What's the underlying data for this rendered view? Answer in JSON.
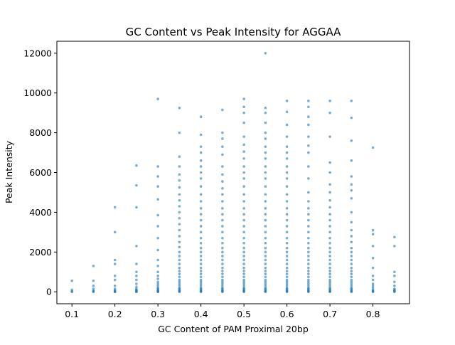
{
  "chart_data": {
    "type": "scatter",
    "title": "GC Content vs Peak Intensity for AGGAA",
    "xlabel": "GC Content of PAM Proximal 20bp",
    "ylabel": "Peak Intensity",
    "xlim": [
      0.065,
      0.885
    ],
    "ylim": [
      -600,
      12600
    ],
    "xticks": [
      0.1,
      0.2,
      0.3,
      0.4,
      0.5,
      0.6,
      0.7,
      0.8
    ],
    "xtick_labels": [
      "0.1",
      "0.2",
      "0.3",
      "0.4",
      "0.5",
      "0.6",
      "0.7",
      "0.8"
    ],
    "yticks": [
      0,
      2000,
      4000,
      6000,
      8000,
      10000,
      12000
    ],
    "ytick_labels": [
      "0",
      "2000",
      "4000",
      "6000",
      "8000",
      "10000",
      "12000"
    ],
    "grid": false,
    "point_color": "#1f77b4",
    "point_alpha": 0.6,
    "x_groups": [
      {
        "x": 0.1,
        "y": [
          0,
          20,
          100,
          550
        ]
      },
      {
        "x": 0.15,
        "y": [
          0,
          20,
          60,
          150,
          300,
          550,
          1300
        ]
      },
      {
        "x": 0.2,
        "y": [
          0,
          10,
          30,
          80,
          150,
          300,
          600,
          800,
          1400,
          1600,
          3000,
          4250
        ]
      },
      {
        "x": 0.25,
        "y": [
          0,
          10,
          30,
          60,
          100,
          150,
          250,
          400,
          600,
          800,
          1000,
          1400,
          2300,
          4250,
          5350,
          6350
        ]
      },
      {
        "x": 0.3,
        "y": [
          0,
          10,
          30,
          60,
          100,
          150,
          200,
          300,
          400,
          500,
          650,
          800,
          1000,
          1300,
          1600,
          2100,
          2700,
          3300,
          3850,
          4650,
          5300,
          5800,
          6300,
          9700
        ]
      },
      {
        "x": 0.35,
        "y": [
          0,
          20,
          50,
          100,
          150,
          200,
          300,
          400,
          500,
          600,
          750,
          900,
          1050,
          1200,
          1400,
          1600,
          1800,
          2000,
          2250,
          2500,
          2800,
          3100,
          3400,
          3700,
          4000,
          4300,
          4600,
          4900,
          5250,
          5600,
          5900,
          6300,
          6800,
          8000,
          9250
        ]
      },
      {
        "x": 0.4,
        "y": [
          0,
          20,
          50,
          100,
          150,
          200,
          300,
          400,
          500,
          600,
          750,
          900,
          1050,
          1200,
          1400,
          1600,
          1800,
          2000,
          2200,
          2450,
          2700,
          3000,
          3300,
          3600,
          3900,
          4200,
          4550,
          4900,
          5300,
          5700,
          6000,
          6300,
          6600,
          7000,
          7300,
          7900,
          8800
        ]
      },
      {
        "x": 0.45,
        "y": [
          0,
          20,
          50,
          100,
          150,
          200,
          300,
          400,
          500,
          600,
          750,
          900,
          1050,
          1200,
          1400,
          1600,
          1800,
          2000,
          2200,
          2450,
          2700,
          3000,
          3300,
          3600,
          3900,
          4200,
          4550,
          4900,
          5200,
          5550,
          5900,
          6300,
          6900,
          7300,
          7700,
          8000,
          9150
        ]
      },
      {
        "x": 0.5,
        "y": [
          0,
          20,
          50,
          100,
          150,
          200,
          300,
          400,
          500,
          600,
          750,
          900,
          1050,
          1200,
          1400,
          1600,
          1800,
          2000,
          2200,
          2450,
          2700,
          3000,
          3300,
          3600,
          3900,
          4200,
          4550,
          4900,
          5300,
          5700,
          6000,
          6300,
          6700,
          7050,
          7400,
          7800,
          8500,
          9000,
          9300,
          9700
        ]
      },
      {
        "x": 0.55,
        "y": [
          0,
          20,
          50,
          100,
          150,
          200,
          300,
          400,
          500,
          600,
          750,
          900,
          1050,
          1200,
          1400,
          1600,
          1800,
          2000,
          2200,
          2450,
          2700,
          3000,
          3300,
          3600,
          3900,
          4200,
          4550,
          4900,
          5300,
          5700,
          6000,
          6300,
          6700,
          7000,
          7300,
          7700,
          8000,
          8500,
          9000,
          9250,
          12000
        ]
      },
      {
        "x": 0.6,
        "y": [
          0,
          20,
          50,
          100,
          150,
          200,
          300,
          400,
          500,
          600,
          750,
          900,
          1050,
          1200,
          1400,
          1600,
          1800,
          2000,
          2200,
          2450,
          2700,
          3000,
          3300,
          3600,
          3900,
          4200,
          4550,
          4900,
          5300,
          5700,
          6000,
          6300,
          6700,
          7000,
          7300,
          7800,
          8400,
          9050,
          9600
        ]
      },
      {
        "x": 0.65,
        "y": [
          0,
          20,
          50,
          100,
          150,
          200,
          300,
          400,
          500,
          600,
          750,
          900,
          1050,
          1200,
          1400,
          1600,
          1800,
          2000,
          2200,
          2450,
          2700,
          3000,
          3300,
          3600,
          3900,
          4200,
          4550,
          5000,
          5700,
          6300,
          7000,
          7350,
          7800,
          8400,
          8800,
          9300,
          9600
        ]
      },
      {
        "x": 0.7,
        "y": [
          0,
          20,
          50,
          100,
          150,
          200,
          300,
          400,
          500,
          600,
          750,
          900,
          1050,
          1200,
          1400,
          1600,
          1800,
          2000,
          2200,
          2450,
          2700,
          3000,
          3300,
          3600,
          3900,
          4250,
          4600,
          5000,
          5400,
          6000,
          6500,
          7800,
          9000,
          9600
        ]
      },
      {
        "x": 0.75,
        "y": [
          0,
          20,
          50,
          100,
          150,
          200,
          300,
          400,
          500,
          600,
          750,
          900,
          1050,
          1200,
          1400,
          1600,
          1800,
          2000,
          2200,
          2500,
          2800,
          3100,
          3500,
          4000,
          4700,
          5100,
          5400,
          5800,
          6600,
          7600,
          8750,
          9600
        ]
      },
      {
        "x": 0.8,
        "y": [
          0,
          20,
          50,
          100,
          200,
          300,
          400,
          600,
          800,
          1200,
          1700,
          2300,
          2900,
          3100,
          7250
        ]
      },
      {
        "x": 0.85,
        "y": [
          0,
          20,
          50,
          100,
          150,
          300,
          500,
          800,
          1000,
          2300,
          2750
        ]
      }
    ]
  }
}
